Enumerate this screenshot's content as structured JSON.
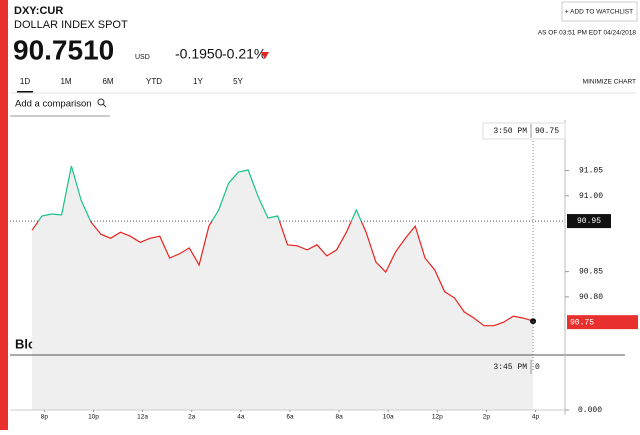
{
  "header": {
    "ticker": "DXY:CUR",
    "name": "DOLLAR INDEX SPOT",
    "price": "90.7510",
    "currency": "USD",
    "change": "-0.1950",
    "change_pct": "-0.21%",
    "watchlist": "+ ADD TO WATCHLIST",
    "as_of": "AS OF 03:51 PM EDT 04/24/2018"
  },
  "tabs": [
    "1D",
    "1M",
    "6M",
    "YTD",
    "1Y",
    "5Y"
  ],
  "minimize": "MINIMIZE CHART",
  "comparison": "Add a comparison",
  "watermark": "BloombergMarkets",
  "chart_data": {
    "type": "line",
    "x": [
      -0.5,
      -0.1,
      0.3,
      0.7,
      1.1,
      1.5,
      1.9,
      2.3,
      2.7,
      3.1,
      3.5,
      3.9,
      4.3,
      4.7,
      5.1,
      5.5,
      5.9,
      6.3,
      6.7,
      7.1,
      7.5,
      7.9,
      8.3,
      8.7,
      9.1,
      9.5,
      9.9,
      10.3,
      10.7,
      11.1,
      11.5,
      11.9,
      12.3,
      12.7,
      13.1,
      13.5,
      13.9,
      14.3,
      14.7,
      15.1,
      15.5,
      15.9,
      16.3,
      16.7,
      17.1,
      17.5,
      17.9,
      18.3,
      18.7,
      19.1,
      19.5,
      19.9
    ],
    "series": [
      {
        "color": "#e8231f",
        "values": [
          90.932,
          90.96,
          90.964,
          90.962,
          91.059,
          90.991,
          90.948,
          90.924,
          90.916,
          90.928,
          90.92,
          90.908,
          90.916,
          90.92,
          90.877,
          90.885,
          90.897,
          90.863,
          90.94,
          90.972,
          91.025,
          91.047,
          91.051,
          90.999,
          90.956,
          90.96,
          90.903,
          90.901,
          90.893,
          90.903,
          90.881,
          90.893,
          90.928,
          90.972,
          90.928,
          90.869,
          90.849,
          90.889,
          90.916,
          90.94,
          90.877,
          90.853,
          90.81,
          90.798,
          90.77,
          90.758,
          90.743,
          90.743,
          90.75,
          90.762,
          90.758,
          90.752
        ]
      }
    ],
    "up_color": "#19c28a",
    "xlim": [
      -1.4,
      21.2
    ],
    "xticks": [
      {
        "value": 0,
        "label": "8p"
      },
      {
        "value": 2,
        "label": "10p"
      },
      {
        "value": 4,
        "label": "12a"
      },
      {
        "value": 6,
        "label": "2a"
      },
      {
        "value": 8,
        "label": "4a"
      },
      {
        "value": 10,
        "label": "6a"
      },
      {
        "value": 12,
        "label": "8a"
      },
      {
        "value": 14,
        "label": "10a"
      },
      {
        "value": 16,
        "label": "12p"
      },
      {
        "value": 18,
        "label": "2p"
      },
      {
        "value": 20,
        "label": "4p"
      }
    ],
    "ylim": [
      90.685,
      91.15
    ],
    "yticks": [
      91.05,
      {
        "value": 91.0,
        "label": "91.00"
      },
      90.85,
      {
        "value": 90.8,
        "label": "90.80"
      }
    ],
    "previous_close": 90.95,
    "last": 90.75,
    "crosshair": {
      "time": "3:50 PM",
      "value": 90.75
    },
    "volume": {
      "time": "3:45 PM",
      "value": 0,
      "axis_tick": {
        "value": 0,
        "label": "0.000"
      }
    }
  }
}
